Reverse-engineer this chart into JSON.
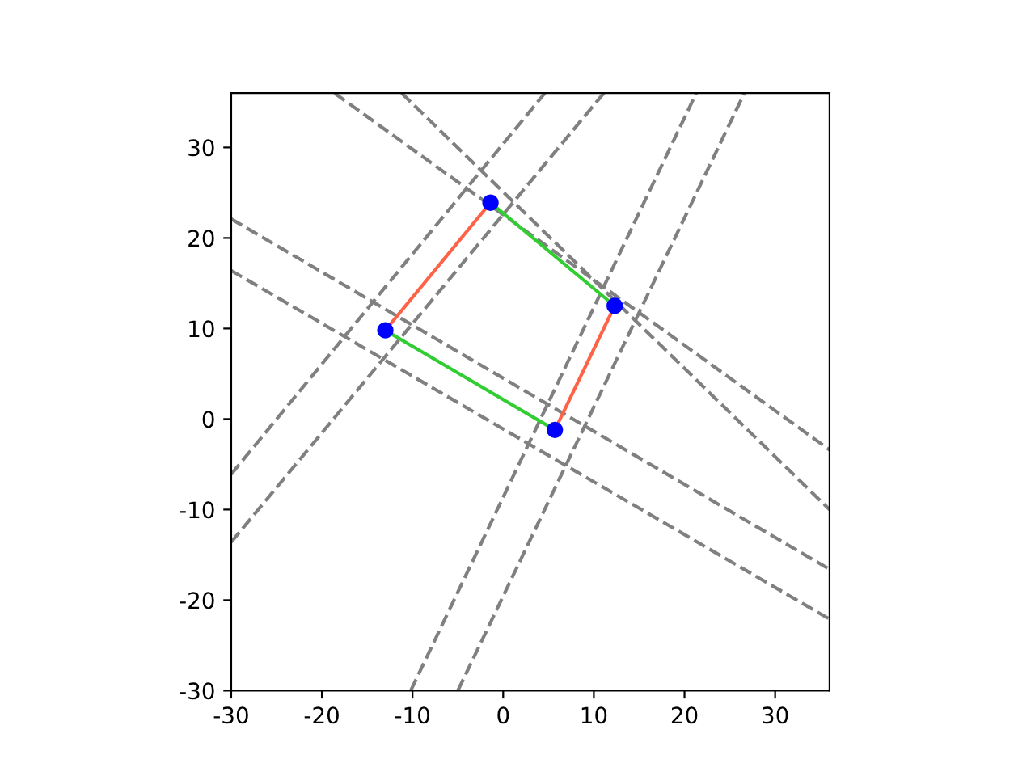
{
  "chart_data": {
    "type": "line",
    "xlim": [
      -30,
      36
    ],
    "ylim": [
      -30,
      36
    ],
    "xticks": [
      -30,
      -20,
      -10,
      0,
      10,
      20,
      30
    ],
    "yticks": [
      -30,
      -20,
      -10,
      0,
      10,
      20,
      30
    ],
    "grid": false,
    "legend": false,
    "series": [
      {
        "color": "#808080",
        "line_style": "dashed",
        "marker": "none",
        "x": [
          -18.6,
          36
        ],
        "values": [
          36,
          -3.4
        ]
      },
      {
        "color": "#808080",
        "line_style": "dashed",
        "marker": "none",
        "x": [
          -11.2,
          36
        ],
        "values": [
          36,
          -10
        ]
      },
      {
        "color": "#808080",
        "line_style": "dashed",
        "marker": "none",
        "x": [
          -30,
          36
        ],
        "values": [
          22.1,
          -16.6
        ]
      },
      {
        "color": "#808080",
        "line_style": "dashed",
        "marker": "none",
        "x": [
          -30,
          36
        ],
        "values": [
          16.4,
          -22.1
        ]
      },
      {
        "color": "#808080",
        "line_style": "dashed",
        "marker": "none",
        "x": [
          -30,
          4.6
        ],
        "values": [
          -6.1,
          36
        ]
      },
      {
        "color": "#808080",
        "line_style": "dashed",
        "marker": "none",
        "x": [
          -30,
          11.1
        ],
        "values": [
          -13.6,
          36
        ]
      },
      {
        "color": "#808080",
        "line_style": "dashed",
        "marker": "none",
        "x": [
          -10.2,
          21.3
        ],
        "values": [
          -30,
          36
        ]
      },
      {
        "color": "#808080",
        "line_style": "dashed",
        "marker": "none",
        "x": [
          -5,
          26.6
        ],
        "values": [
          -30,
          36
        ]
      },
      {
        "type": "scatter",
        "color": "#0000ff",
        "marker": "circle",
        "x": [
          -13,
          -1.4,
          12.3,
          5.7
        ],
        "values": [
          9.8,
          23.9,
          12.5,
          -1.2
        ]
      },
      {
        "color": "#ff6347",
        "line_style": "solid",
        "marker": "none",
        "x": [
          -13,
          -1.4
        ],
        "values": [
          9.8,
          23.9
        ]
      },
      {
        "color": "#ff6347",
        "line_style": "solid",
        "marker": "none",
        "x": [
          12.3,
          5.7
        ],
        "values": [
          12.5,
          -1.2
        ]
      },
      {
        "color": "#32cd32",
        "line_style": "solid",
        "marker": "none",
        "x": [
          -1.4,
          12.3
        ],
        "values": [
          23.9,
          12.5
        ]
      },
      {
        "color": "#32cd32",
        "line_style": "solid",
        "marker": "none",
        "x": [
          -13,
          5.7
        ],
        "values": [
          9.8,
          -1.2
        ]
      }
    ]
  }
}
